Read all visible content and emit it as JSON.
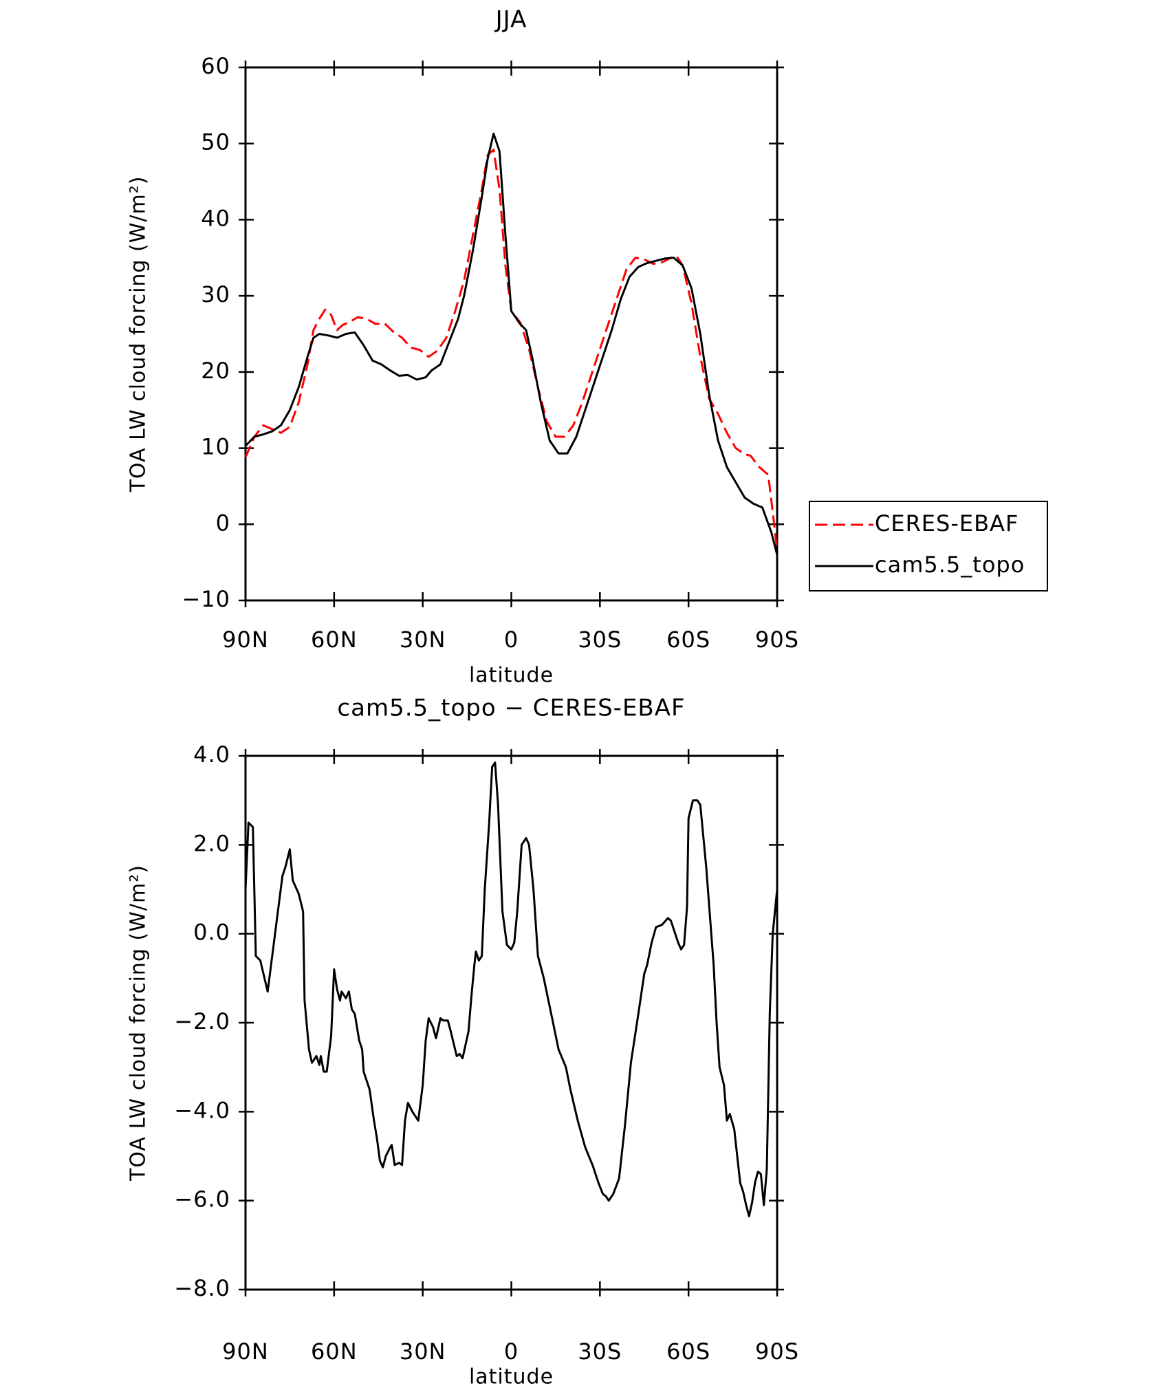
{
  "chart_data": [
    {
      "type": "line",
      "title": "JJA",
      "x_label": "latitude",
      "y_label": "TOA LW cloud forcing (W/m²)",
      "xlim": [
        90,
        -90
      ],
      "xticks": [
        {
          "value": 90,
          "label": "90N"
        },
        {
          "value": 60,
          "label": "60N"
        },
        {
          "value": 30,
          "label": "30N"
        },
        0,
        {
          "value": -30,
          "label": "30S"
        },
        {
          "value": -60,
          "label": "60S"
        },
        {
          "value": -90,
          "label": "90S"
        }
      ],
      "ylim": [
        -10,
        60
      ],
      "yticks": [
        {
          "value": -10,
          "label": "−10"
        },
        0,
        10,
        20,
        30,
        40,
        50,
        60
      ],
      "legend": "outside right",
      "series": [
        {
          "name": "CERES-EBAF",
          "color": "#ff0000",
          "line_style": "dashed",
          "x": [
            90,
            87,
            84,
            81,
            78,
            75,
            72,
            69,
            67,
            65,
            63,
            61,
            59,
            57,
            55,
            52,
            49,
            46,
            43,
            40,
            37,
            34,
            31,
            28,
            25,
            22,
            19,
            16,
            13,
            10,
            8,
            6,
            4,
            2,
            0,
            -3,
            -6,
            -9,
            -12,
            -15,
            -18,
            -21,
            -24,
            -27,
            -30,
            -33,
            -36,
            -39,
            -42,
            -45,
            -48,
            -51,
            -54,
            -56,
            -58,
            -61,
            -64,
            -67,
            -70,
            -73,
            -76,
            -79,
            -81,
            -84,
            -87,
            -89,
            -90
          ],
          "values": [
            8.8,
            11.5,
            13.0,
            12.5,
            12.0,
            12.8,
            16,
            21,
            25.5,
            27,
            28.2,
            27.5,
            25.5,
            26.2,
            26.5,
            27.2,
            27.0,
            26.3,
            26.4,
            25.3,
            24.5,
            23.2,
            22.9,
            22.0,
            22.8,
            24.5,
            28,
            32,
            38,
            44,
            48.5,
            49.2,
            44,
            34,
            28,
            26.5,
            23,
            18,
            13.5,
            11.5,
            11.5,
            13,
            16,
            19.5,
            23,
            26.5,
            30,
            33.5,
            35,
            34.8,
            34.2,
            34.4,
            35,
            35.2,
            34,
            29,
            22,
            16.5,
            14.5,
            12,
            10,
            9.2,
            9,
            7.5,
            6.5,
            0,
            -3.5
          ]
        },
        {
          "name": "cam5.5_topo",
          "color": "#000000",
          "line_style": "solid",
          "x": [
            90,
            87,
            84,
            81,
            78,
            75,
            72,
            69,
            67,
            65,
            62,
            59,
            56,
            53,
            50,
            47,
            44,
            41,
            38,
            35,
            32,
            29,
            27,
            24,
            21,
            18,
            16,
            13,
            10,
            8,
            6,
            4,
            2,
            0,
            -3,
            -5,
            -7,
            -10,
            -13,
            -16,
            -19,
            -22,
            -25,
            -28,
            -31,
            -34,
            -37,
            -40,
            -43,
            -46,
            -49,
            -52,
            -55,
            -58,
            -61,
            -64,
            -67,
            -70,
            -73,
            -76,
            -79,
            -82,
            -85,
            -88,
            -90
          ],
          "values": [
            10.3,
            11.5,
            11.8,
            12.2,
            13,
            15,
            18,
            22,
            24.5,
            25,
            24.8,
            24.5,
            25,
            25.2,
            23.5,
            21.5,
            21,
            20.2,
            19.5,
            19.6,
            19,
            19.3,
            20.2,
            21,
            24,
            27,
            30,
            36,
            43,
            48,
            51.3,
            49,
            38,
            28,
            26.3,
            25.5,
            22,
            16,
            11,
            9.3,
            9.3,
            11.5,
            15,
            18.5,
            22,
            25.5,
            29.5,
            32.5,
            33.8,
            34.3,
            34.6,
            34.9,
            35,
            34,
            31,
            25,
            17,
            11,
            7.5,
            5.5,
            3.5,
            2.7,
            2.2,
            -1,
            -4
          ]
        }
      ]
    },
    {
      "type": "line",
      "title": "cam5.5_topo − CERES-EBAF",
      "x_label": "latitude",
      "y_label": "TOA LW cloud forcing (W/m²)",
      "xlim": [
        90,
        -90
      ],
      "xticks": [
        {
          "value": 90,
          "label": "90N"
        },
        {
          "value": 60,
          "label": "60N"
        },
        {
          "value": 30,
          "label": "30N"
        },
        0,
        {
          "value": -30,
          "label": "30S"
        },
        {
          "value": -60,
          "label": "60S"
        },
        {
          "value": -90,
          "label": "90S"
        }
      ],
      "ylim": [
        -8,
        4
      ],
      "yticks": [
        {
          "value": -8,
          "label": "−8.0"
        },
        {
          "value": -6,
          "label": "−6.0"
        },
        {
          "value": -4,
          "label": "−4.0"
        },
        {
          "value": -2,
          "label": "−2.0"
        },
        {
          "value": 0,
          "label": "0.0"
        },
        {
          "value": 2,
          "label": "2.0"
        },
        {
          "value": 4,
          "label": "4.0"
        }
      ],
      "series": [
        {
          "color": "#000000",
          "line_style": "solid",
          "x": [
            90,
            89,
            87.5,
            86.5,
            85,
            82.5,
            77.5,
            76.5,
            75,
            74,
            72,
            70.5,
            70,
            68.5,
            67.5,
            66,
            65,
            64.5,
            63.5,
            62.5,
            61,
            60,
            59,
            58,
            57.5,
            56,
            55,
            54,
            53,
            51.5,
            50.5,
            50,
            48,
            46.5,
            45.5,
            44.5,
            43.5,
            42.5,
            41,
            40.5,
            39.5,
            38,
            37,
            36,
            35,
            33.5,
            31.5,
            30,
            29,
            28,
            26.5,
            25.5,
            24,
            23,
            21.5,
            20.5,
            18.5,
            17.5,
            16.5,
            14.5,
            13.5,
            12.5,
            12,
            11,
            10,
            9,
            7.5,
            6.5,
            5.5,
            4.5,
            3,
            1.5,
            0,
            -1,
            -2,
            -3.5,
            -5,
            -6,
            -7.5,
            -9,
            -11,
            -13.5,
            -16,
            -18.5,
            -20,
            -22.5,
            -25,
            -27.5,
            -29.5,
            -31,
            -32,
            -33,
            -34.5,
            -36.5,
            -38.5,
            -40.5,
            -43,
            -45,
            -46,
            -47.5,
            -49,
            -51,
            -53,
            -54,
            -55,
            -56.5,
            -57.5,
            -58.5,
            -59.5,
            -60,
            -61.5,
            -63,
            -64,
            -66,
            -68.5,
            -69.5,
            -70.5,
            -72,
            -73,
            -74,
            -75.5,
            -76.5,
            -77.5,
            -78.5,
            -79.5,
            -80.5,
            -81.5,
            -82.5,
            -83.5,
            -84.5,
            -85.5,
            -86.5,
            -87.5,
            -88.5,
            -90
          ],
          "values": [
            1.0,
            2.5,
            2.4,
            -0.5,
            -0.6,
            -1.3,
            1.3,
            1.5,
            1.9,
            1.2,
            0.9,
            0.5,
            -1.5,
            -2.6,
            -2.9,
            -2.75,
            -2.95,
            -2.75,
            -3.1,
            -3.1,
            -2.3,
            -0.8,
            -1.25,
            -1.5,
            -1.3,
            -1.45,
            -1.3,
            -1.7,
            -1.8,
            -2.4,
            -2.6,
            -3.1,
            -3.5,
            -4.2,
            -4.6,
            -5.1,
            -5.25,
            -5.0,
            -4.8,
            -4.75,
            -5.2,
            -5.15,
            -5.2,
            -4.2,
            -3.8,
            -4.0,
            -4.2,
            -3.4,
            -2.4,
            -1.9,
            -2.1,
            -2.35,
            -1.9,
            -1.95,
            -1.95,
            -2.2,
            -2.75,
            -2.7,
            -2.8,
            -2.2,
            -1.4,
            -0.7,
            -0.4,
            -0.6,
            -0.5,
            1.0,
            2.5,
            3.75,
            3.85,
            2.9,
            0.5,
            -0.25,
            -0.35,
            -0.2,
            0.5,
            2.0,
            2.15,
            2.0,
            1.0,
            -0.5,
            -1.0,
            -1.8,
            -2.6,
            -3.0,
            -3.5,
            -4.2,
            -4.8,
            -5.2,
            -5.6,
            -5.85,
            -5.9,
            -6.0,
            -5.85,
            -5.5,
            -4.3,
            -2.9,
            -1.8,
            -0.9,
            -0.7,
            -0.2,
            0.15,
            0.2,
            0.35,
            0.3,
            0.1,
            -0.2,
            -0.35,
            -0.25,
            0.6,
            2.6,
            3.0,
            3.0,
            2.9,
            1.5,
            -0.7,
            -2.0,
            -3.0,
            -3.4,
            -4.2,
            -4.05,
            -4.4,
            -5.0,
            -5.6,
            -5.8,
            -6.1,
            -6.35,
            -6.05,
            -5.6,
            -5.35,
            -5.4,
            -6.1,
            -5.3,
            -1.8,
            0.0,
            1.0
          ]
        }
      ]
    }
  ]
}
